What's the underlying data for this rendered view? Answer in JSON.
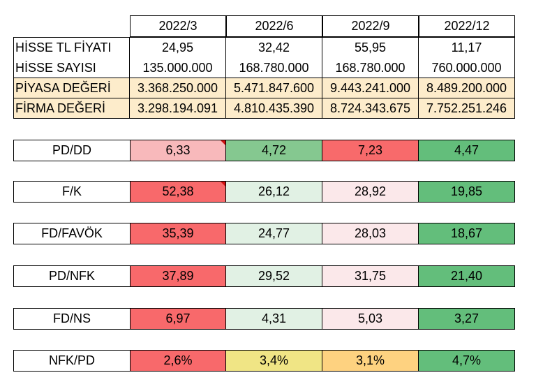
{
  "periods": [
    "2022/3",
    "2022/6",
    "2022/9",
    "2022/12"
  ],
  "info_rows": [
    {
      "label": "HİSSE TL FİYATI",
      "values": [
        "24,95",
        "32,42",
        "55,95",
        "11,17"
      ],
      "highlight": false
    },
    {
      "label": "HİSSE SAYISI",
      "values": [
        "135.000.000",
        "168.780.000",
        "168.780.000",
        "760.000.000"
      ],
      "highlight": false
    },
    {
      "label": "PİYASA DEĞERİ",
      "values": [
        "3.368.250.000",
        "5.471.847.600",
        "9.443.241.000",
        "8.489.200.000"
      ],
      "highlight": true
    },
    {
      "label": "FİRMA DEĞERİ",
      "values": [
        "3.298.194.091",
        "4.810.435.390",
        "8.724.343.675",
        "7.752.251.246"
      ],
      "highlight": true
    }
  ],
  "highlight_color": "#fdeccb",
  "ratio_rows": [
    {
      "label": "PD/DD",
      "comment_marker": true,
      "values": [
        "6,33",
        "4,72",
        "7,23",
        "4,47"
      ],
      "colors": [
        "#f8b9bb",
        "#85c890",
        "#f86a6b",
        "#63be7b"
      ]
    },
    {
      "label": "F/K",
      "comment_marker": true,
      "values": [
        "52,38",
        "26,12",
        "28,92",
        "19,85"
      ],
      "colors": [
        "#f8696b",
        "#e1f1e4",
        "#fbe8ea",
        "#63be7b"
      ]
    },
    {
      "label": "FD/FAVÖK",
      "comment_marker": false,
      "values": [
        "35,39",
        "24,77",
        "28,03",
        "18,67"
      ],
      "colors": [
        "#f8696b",
        "#e1f1e4",
        "#fbe8ea",
        "#63be7b"
      ]
    },
    {
      "label": "PD/NFK",
      "comment_marker": false,
      "values": [
        "37,89",
        "29,52",
        "31,75",
        "21,40"
      ],
      "colors": [
        "#f8696b",
        "#e1f1e4",
        "#fbe8ea",
        "#63be7b"
      ]
    },
    {
      "label": "FD/NS",
      "comment_marker": false,
      "values": [
        "6,97",
        "4,31",
        "5,03",
        "3,27"
      ],
      "colors": [
        "#f8696b",
        "#e1f1e4",
        "#fbe8ea",
        "#63be7b"
      ]
    },
    {
      "label": "NFK/PD",
      "comment_marker": false,
      "values": [
        "2,6%",
        "3,4%",
        "3,1%",
        "4,7%"
      ],
      "colors": [
        "#f8696b",
        "#f0e585",
        "#fed280",
        "#63be7b"
      ]
    }
  ]
}
